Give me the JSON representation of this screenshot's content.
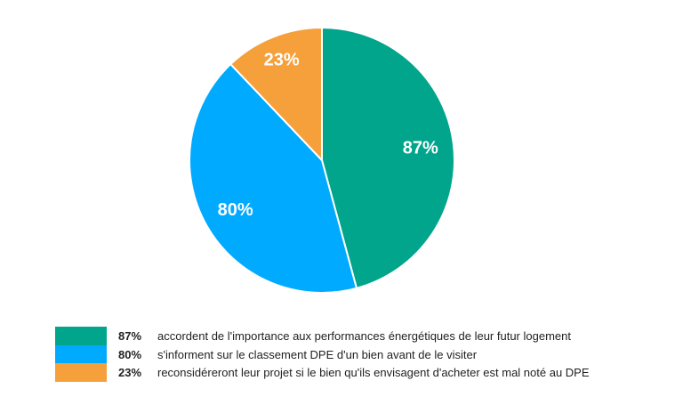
{
  "chart_data": {
    "type": "pie",
    "title": "",
    "slices": [
      {
        "label": "87%",
        "value": 87,
        "description": "accordent de l'importance aux performances énergétiques de leur futur logement",
        "color": "#00A58C"
      },
      {
        "label": "80%",
        "value": 80,
        "description": "s'informent sur le classement DPE d'un bien avant de le visiter",
        "color": "#00AAFF"
      },
      {
        "label": "23%",
        "value": 23,
        "description": "reconsidéreront leur projet si le bien qu'ils envisagent d'acheter est mal noté au DPE",
        "color": "#F5A03A"
      }
    ],
    "legend_position": "bottom-left"
  }
}
